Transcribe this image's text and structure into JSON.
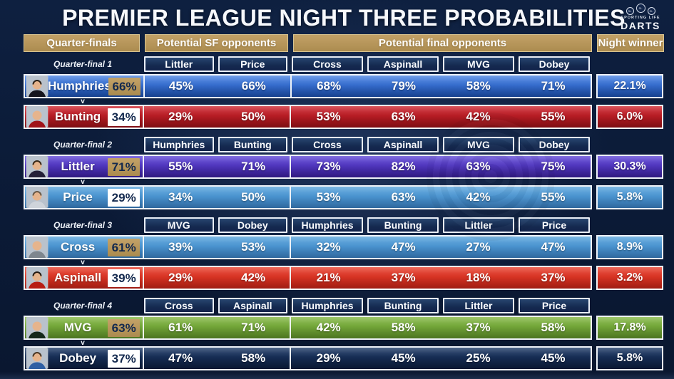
{
  "title": "PREMIER LEAGUE NIGHT THREE PROBABILITIES",
  "logo": {
    "monogram": "SL",
    "brand_top": "SPORTING LIFE",
    "brand_bottom": "DARTS"
  },
  "columns": {
    "quarter_finals": "Quarter-finals",
    "sf_opponents": "Potential SF opponents",
    "final_opponents": "Potential final opponents",
    "night_winner": "Night winner"
  },
  "versus_label": "v",
  "colors": {
    "gold_accent": "#b6955c",
    "navy_background": "#0b1a36",
    "favourite_badge": "#b6955c",
    "underdog_badge": "#ffffff",
    "badge_text": "#13294e"
  },
  "chart_data": {
    "type": "table",
    "title": "PREMIER LEAGUE NIGHT THREE PROBABILITIES",
    "sections": [
      {
        "label": "Quarter-final 1",
        "sf_headers": [
          "Littler",
          "Price"
        ],
        "final_headers": [
          "Cross",
          "Aspinall",
          "MVG",
          "Dobey"
        ],
        "players": [
          {
            "name": "Humphries",
            "win_pct": "66%",
            "favourite": true,
            "sf": [
              "45%",
              "66%"
            ],
            "final": [
              "68%",
              "79%",
              "58%",
              "71%"
            ],
            "night": "22.1%",
            "color_top": "#4a84e4",
            "color_bottom": "#1c4fae",
            "avatar": {
              "shirt": "#15151d",
              "hair": "#2a2118"
            }
          },
          {
            "name": "Bunting",
            "win_pct": "34%",
            "favourite": false,
            "sf": [
              "29%",
              "50%"
            ],
            "final": [
              "53%",
              "63%",
              "42%",
              "55%"
            ],
            "night": "6.0%",
            "color_top": "#ce2630",
            "color_bottom": "#991016",
            "avatar": {
              "shirt": "#a01218",
              "hair": "none"
            }
          }
        ]
      },
      {
        "label": "Quarter-final 2",
        "sf_headers": [
          "Humphries",
          "Bunting"
        ],
        "final_headers": [
          "Cross",
          "Aspinall",
          "MVG",
          "Dobey"
        ],
        "players": [
          {
            "name": "Littler",
            "win_pct": "71%",
            "favourite": true,
            "sf": [
              "55%",
              "71%"
            ],
            "final": [
              "73%",
              "82%",
              "63%",
              "75%"
            ],
            "night": "30.3%",
            "color_top": "#6048d8",
            "color_bottom": "#3a1f9c",
            "avatar": {
              "shirt": "#241f38",
              "hair": "#3a2a1a"
            }
          },
          {
            "name": "Price",
            "win_pct": "29%",
            "favourite": false,
            "sf": [
              "34%",
              "50%"
            ],
            "final": [
              "53%",
              "63%",
              "42%",
              "55%"
            ],
            "night": "5.8%",
            "color_top": "#58a4dc",
            "color_bottom": "#3a7fc0",
            "avatar": {
              "shirt": "#cfd4da",
              "hair": "#6a5a48"
            }
          }
        ]
      },
      {
        "label": "Quarter-final 3",
        "sf_headers": [
          "MVG",
          "Dobey"
        ],
        "final_headers": [
          "Humphries",
          "Bunting",
          "Littler",
          "Price"
        ],
        "players": [
          {
            "name": "Cross",
            "win_pct": "61%",
            "favourite": true,
            "sf": [
              "39%",
              "53%"
            ],
            "final": [
              "32%",
              "47%",
              "27%",
              "47%"
            ],
            "night": "8.9%",
            "color_top": "#58a4dc",
            "color_bottom": "#3a7fc0",
            "avatar": {
              "shirt": "#7e868e",
              "hair": "none"
            }
          },
          {
            "name": "Aspinall",
            "win_pct": "39%",
            "favourite": false,
            "sf": [
              "29%",
              "42%"
            ],
            "final": [
              "21%",
              "37%",
              "18%",
              "37%"
            ],
            "night": "3.2%",
            "color_top": "#e8402e",
            "color_bottom": "#c32316",
            "avatar": {
              "shirt": "#b81d14",
              "hair": "#241a12"
            }
          }
        ]
      },
      {
        "label": "Quarter-final 4",
        "sf_headers": [
          "Cross",
          "Aspinall"
        ],
        "final_headers": [
          "Humphries",
          "Bunting",
          "Littler",
          "Price"
        ],
        "players": [
          {
            "name": "MVG",
            "win_pct": "63%",
            "favourite": true,
            "sf": [
              "61%",
              "71%"
            ],
            "final": [
              "42%",
              "58%",
              "37%",
              "58%"
            ],
            "night": "17.8%",
            "color_top": "#84b845",
            "color_bottom": "#5c8e28",
            "avatar": {
              "shirt": "#14281a",
              "hair": "none"
            }
          },
          {
            "name": "Dobey",
            "win_pct": "37%",
            "favourite": false,
            "sf": [
              "47%",
              "58%"
            ],
            "final": [
              "29%",
              "45%",
              "25%",
              "45%"
            ],
            "night": "5.8%",
            "color_top": "#1d3966",
            "color_bottom": "#0c1d3d",
            "avatar": {
              "shirt": "#2e5fa3",
              "hair": "#4a3826"
            }
          }
        ]
      }
    ]
  }
}
